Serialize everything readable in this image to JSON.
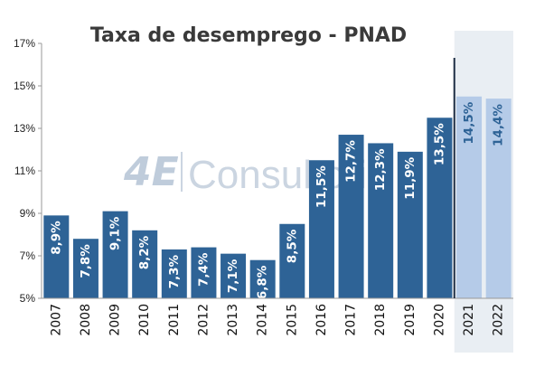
{
  "chart_data": {
    "type": "bar",
    "title": "Taxa de desemprego - PNAD",
    "categories": [
      "2007",
      "2008",
      "2009",
      "2010",
      "2011",
      "2012",
      "2013",
      "2014",
      "2015",
      "2016",
      "2017",
      "2018",
      "2019",
      "2020",
      "2021",
      "2022"
    ],
    "values": [
      8.9,
      7.8,
      9.1,
      8.2,
      7.3,
      7.4,
      7.1,
      6.8,
      8.5,
      11.5,
      12.7,
      12.3,
      11.9,
      13.5,
      14.5,
      14.4
    ],
    "value_labels": [
      "8,9%",
      "7,8%",
      "9,1%",
      "8,2%",
      "7,3%",
      "7,4%",
      "7,1%",
      "6,8%",
      "8,5%",
      "11,5%",
      "12,7%",
      "12,3%",
      "11,9%",
      "13,5%",
      "14,5%",
      "14,4%"
    ],
    "yticks": [
      5,
      7,
      9,
      11,
      13,
      15,
      17
    ],
    "ytick_labels": [
      "5%",
      "7%",
      "9%",
      "11%",
      "13%",
      "15%",
      "17%"
    ],
    "ylim": [
      5,
      17
    ],
    "projected_categories": [
      "2021",
      "2022"
    ],
    "grid": false,
    "xlabel": "",
    "ylabel": "",
    "watermark": "4E Consultoria",
    "colors": {
      "bar": "#2e6396",
      "bar_projected": "#b5cbe8",
      "projection_band": "#e9eef3",
      "label_actual": "#ffffff",
      "label_projected": "#2e6396",
      "divider": "#1f2f45"
    }
  }
}
